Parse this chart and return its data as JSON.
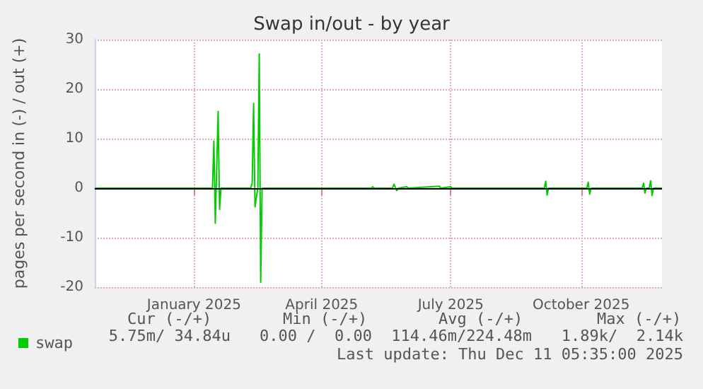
{
  "chart_data": {
    "type": "line",
    "title": "Swap in/out - by year",
    "ylabel": "pages per second in (-) / out (+)",
    "xlim": [
      "2024-11-06",
      "2025-12-11"
    ],
    "xticks": [
      {
        "value": "2025-01-15",
        "label": "January 2025"
      },
      {
        "value": "2025-04-15",
        "label": "April 2025"
      },
      {
        "value": "2025-07-15",
        "label": "July 2025"
      },
      {
        "value": "2025-10-15",
        "label": "October 2025"
      }
    ],
    "ylim": [
      -20,
      30
    ],
    "yticks": [
      -20,
      -10,
      0,
      10,
      20,
      30
    ],
    "grid": true,
    "legend": "bottom left",
    "marker": "none",
    "line_style": "solid",
    "ref_lines": [
      {
        "axis": "y",
        "value": 0,
        "label": null,
        "color": "#000000"
      }
    ],
    "series": [
      {
        "name": "swap",
        "color": "#00cc00",
        "x": [
          "2024-11-06",
          "2025-01-28",
          "2025-01-29",
          "2025-01-30",
          "2025-02-01",
          "2025-02-02",
          "2025-02-03",
          "2025-02-24",
          "2025-02-25",
          "2025-02-26",
          "2025-02-27",
          "2025-03-01",
          "2025-03-02",
          "2025-03-03",
          "2025-03-04",
          "2025-05-20",
          "2025-05-21",
          "2025-05-22",
          "2025-06-04",
          "2025-06-05",
          "2025-06-07",
          "2025-06-08",
          "2025-06-14",
          "2025-06-15",
          "2025-07-07",
          "2025-07-08",
          "2025-07-15",
          "2025-07-16",
          "2025-09-19",
          "2025-09-20",
          "2025-09-21",
          "2025-09-22",
          "2025-10-19",
          "2025-10-20",
          "2025-10-21",
          "2025-10-22",
          "2025-11-27",
          "2025-11-28",
          "2025-11-29",
          "2025-11-30",
          "2025-12-02",
          "2025-12-03",
          "2025-12-04",
          "2025-12-05",
          "2025-12-11"
        ],
        "values": [
          0,
          0,
          9.5,
          -7.1,
          15.5,
          -4.3,
          0,
          0,
          1,
          17.1,
          -3.8,
          0,
          27.1,
          -19,
          0,
          0,
          0.3,
          0,
          0,
          0.8,
          -0.5,
          0,
          0.3,
          0,
          0.4,
          0,
          0.3,
          0,
          0,
          1.4,
          -1.4,
          0,
          0,
          1.2,
          -1.2,
          0,
          0,
          1,
          -1,
          0,
          0,
          1.5,
          -1.5,
          0,
          0
        ]
      }
    ],
    "annotations": [
      "Cur (-/+)",
      "Min (-/+)",
      "Avg (-/+)",
      "Max (-/+)",
      "5.75m/ 34.84u",
      "0.00 /  0.00",
      "114.46m/224.48m",
      "1.89k/  2.14k",
      "Last update: Thu Dec 11 05:35:00 2025"
    ]
  }
}
